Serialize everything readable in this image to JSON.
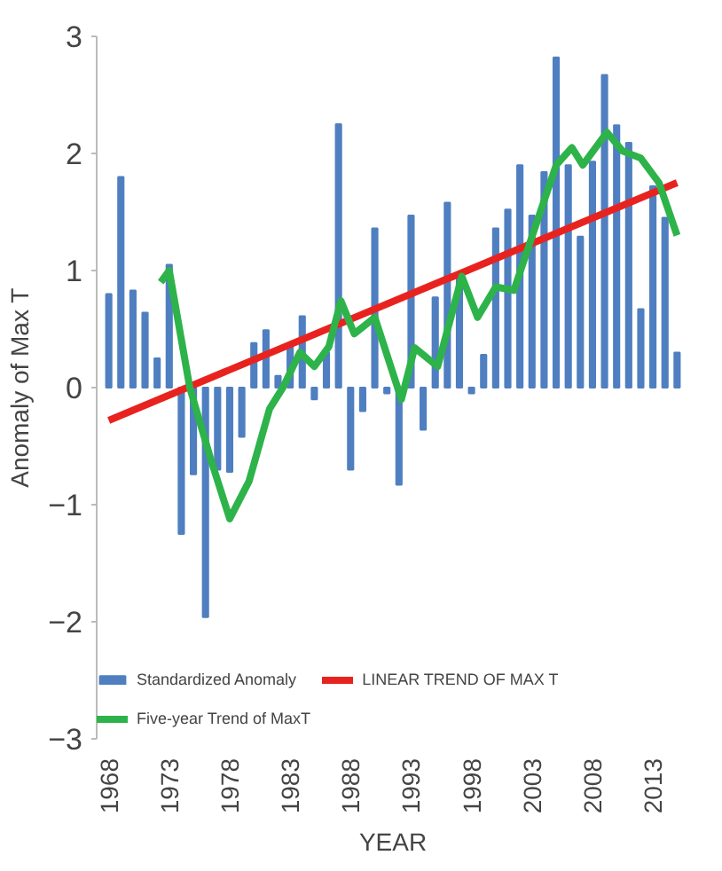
{
  "chart_data": {
    "type": "bar",
    "xlabel": "YEAR",
    "ylabel": "Anomaly of Max T",
    "x": [
      1968,
      1969,
      1970,
      1971,
      1972,
      1973,
      1974,
      1975,
      1976,
      1977,
      1978,
      1979,
      1980,
      1981,
      1982,
      1983,
      1984,
      1985,
      1986,
      1987,
      1988,
      1989,
      1990,
      1991,
      1992,
      1993,
      1994,
      1995,
      1996,
      1997,
      1998,
      1999,
      2000,
      2001,
      2002,
      2003,
      2004,
      2005,
      2006,
      2007,
      2008,
      2009,
      2010,
      2011,
      2012,
      2013,
      2014,
      2015
    ],
    "xlim": [
      1967,
      2016
    ],
    "xticks": [
      1968,
      1973,
      1978,
      1983,
      1988,
      1993,
      1998,
      2003,
      2008,
      2013
    ],
    "ylim": [
      -3,
      3
    ],
    "yticks": [
      -3,
      -2,
      -1,
      0,
      1,
      2,
      3
    ],
    "grid": false,
    "legend": "bottom",
    "series": [
      {
        "name": "Standardized Anomaly",
        "color": "#4f7fc0",
        "values": [
          0.8,
          1.8,
          0.83,
          0.64,
          0.25,
          1.05,
          -1.25,
          -0.74,
          -1.96,
          -0.7,
          -0.72,
          -0.42,
          0.38,
          0.49,
          0.1,
          0.35,
          0.61,
          -0.1,
          0.3,
          2.25,
          -0.7,
          -0.2,
          1.36,
          -0.05,
          -0.83,
          1.47,
          -0.36,
          0.77,
          1.58,
          0.98,
          -0.05,
          0.28,
          1.36,
          1.52,
          1.9,
          1.47,
          1.84,
          2.82,
          1.9,
          1.29,
          1.93,
          2.67,
          2.24,
          2.09,
          0.67,
          1.72,
          1.45,
          0.3
        ]
      },
      {
        "name": "LINEAR TREND OF MAX T",
        "type": "line",
        "color": "#e8231f",
        "x": [
          1968,
          2015
        ],
        "values": [
          -0.28,
          1.75
        ]
      },
      {
        "name": "Five-year Trend of MaxT",
        "type": "line",
        "color": "#2db34a",
        "x": [
          1972.3,
          1973,
          1974.7,
          1976.4,
          1978,
          1979.6,
          1981.3,
          1982.4,
          1983.8,
          1985,
          1986.2,
          1987.2,
          1988.3,
          1990,
          1992.2,
          1993.3,
          1995.2,
          1997.2,
          1998.5,
          2000,
          2001.5,
          2003,
          2005,
          2006.3,
          2007.2,
          2009.2,
          2010.5,
          2012,
          2013.5,
          2015
        ],
        "values": [
          0.9,
          1.0,
          0.0,
          -0.6,
          -1.12,
          -0.8,
          -0.18,
          0.0,
          0.3,
          0.18,
          0.35,
          0.74,
          0.46,
          0.6,
          -0.1,
          0.34,
          0.18,
          0.95,
          0.6,
          0.86,
          0.83,
          1.29,
          1.9,
          2.05,
          1.9,
          2.18,
          2.02,
          1.96,
          1.75,
          1.3
        ]
      }
    ]
  }
}
